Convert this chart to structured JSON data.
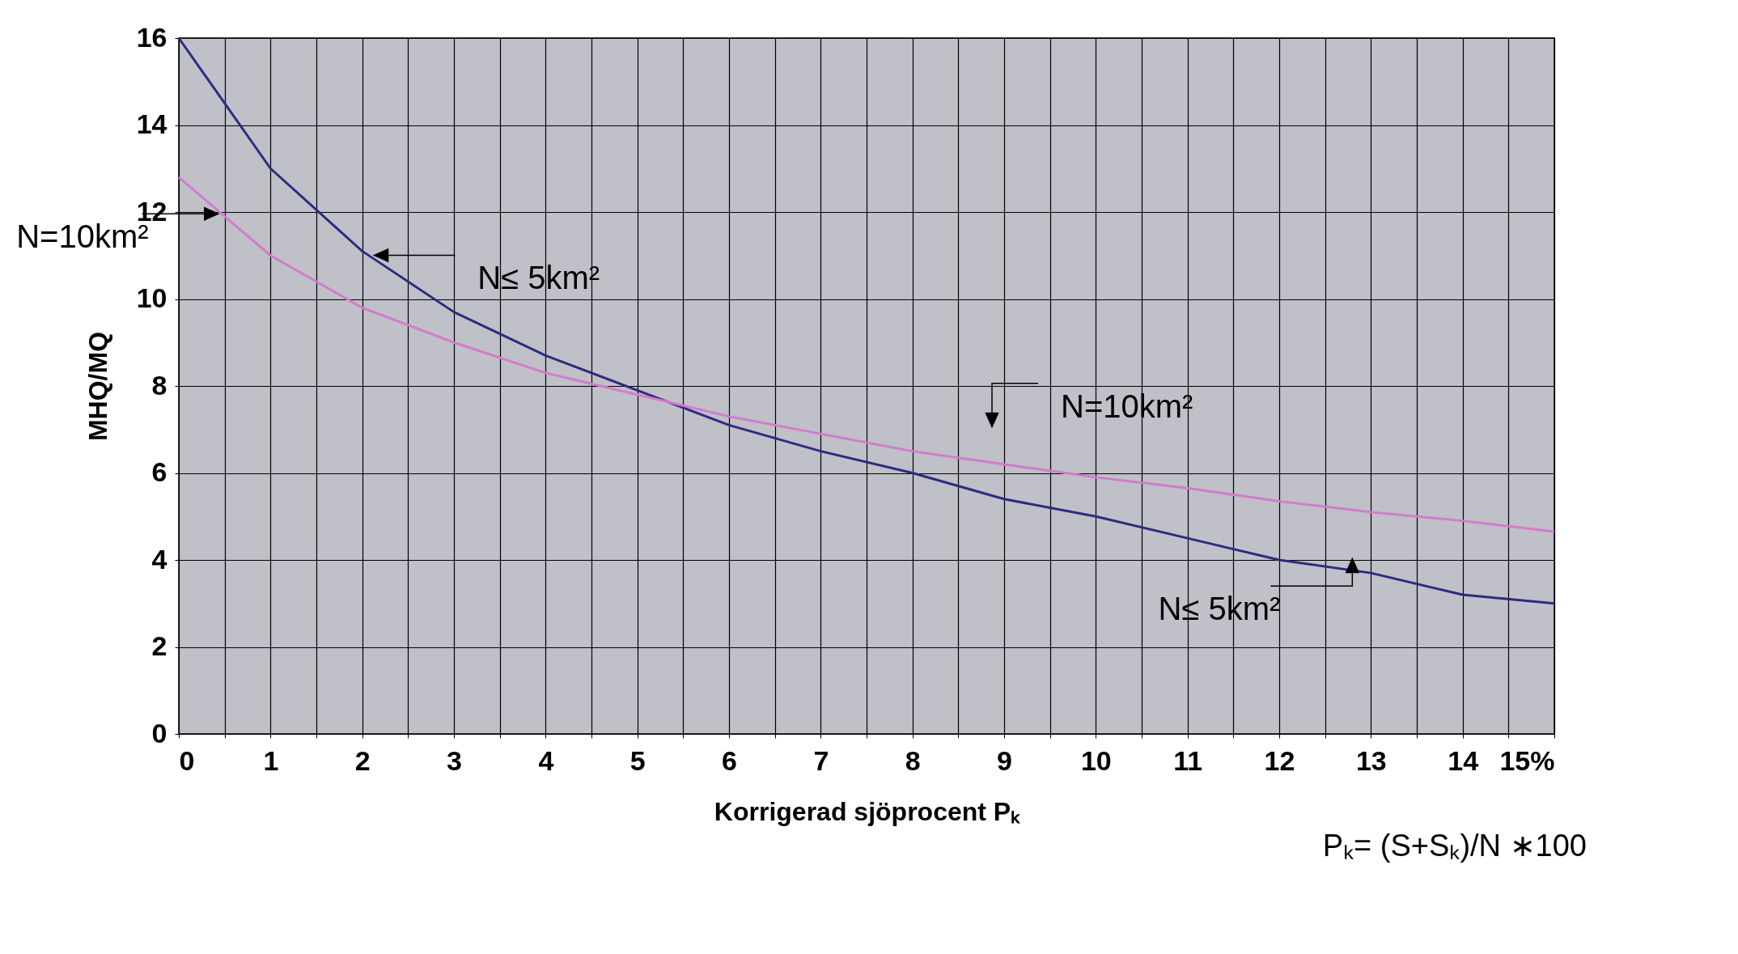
{
  "chart_data": {
    "type": "line",
    "xlabel": "Korrigerad sjöprocent Pₖ",
    "ylabel": "MHQ/MQ",
    "x": [
      0,
      1,
      2,
      3,
      4,
      5,
      6,
      7,
      8,
      9,
      10,
      11,
      12,
      13,
      14,
      15
    ],
    "series": [
      {
        "color": "#2f2a80",
        "values": [
          16,
          13,
          11.1,
          9.7,
          8.7,
          7.9,
          7.1,
          6.5,
          6.0,
          5.4,
          5.0,
          4.5,
          4.0,
          3.7,
          3.2,
          3.0
        ]
      },
      {
        "color": "#d27ccb",
        "values": [
          12.8,
          11,
          9.8,
          9.0,
          8.3,
          7.8,
          7.3,
          6.9,
          6.5,
          6.2,
          5.9,
          5.65,
          5.35,
          5.1,
          4.9,
          4.65
        ]
      }
    ],
    "xlim": [
      0,
      15
    ],
    "xticks": [
      0,
      {
        "value": 0.5,
        "label": null
      },
      1,
      {
        "value": 1.5,
        "label": null
      },
      2,
      {
        "value": 2.5,
        "label": null
      },
      3,
      {
        "value": 3.5,
        "label": null
      },
      4,
      {
        "value": 4.5,
        "label": null
      },
      5,
      {
        "value": 5.5,
        "label": null
      },
      6,
      {
        "value": 6.5,
        "label": null
      },
      7,
      {
        "value": 7.5,
        "label": null
      },
      8,
      {
        "value": 8.5,
        "label": null
      },
      9,
      {
        "value": 9.5,
        "label": null
      },
      10,
      {
        "value": 10.5,
        "label": null
      },
      11,
      {
        "value": 11.5,
        "label": null
      },
      12,
      {
        "value": 12.5,
        "label": null
      },
      13,
      {
        "value": 13.5,
        "label": null
      },
      14,
      {
        "value": 14.5,
        "label": null
      },
      {
        "value": 15,
        "label": "15%"
      }
    ],
    "ylim": [
      0,
      16
    ],
    "yticks": [
      0,
      2,
      4,
      6,
      8,
      10,
      12,
      14,
      16
    ],
    "grid": true,
    "annotations": [
      "N=10km²",
      {
        "text": "N≤ 5km²",
        "x": 2.2,
        "y": 10.82
      },
      {
        "text": "N=10km²",
        "x": 9,
        "y": 6.2
      },
      {
        "text": "N≤ 5km²",
        "x": 13,
        "y": 3.7
      },
      "Pₖ= (S+Sₖ)/N ∗100"
    ]
  }
}
